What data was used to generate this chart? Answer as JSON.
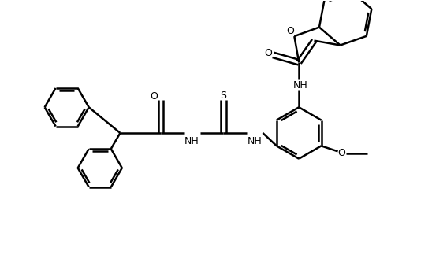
{
  "background_color": "#ffffff",
  "line_color": "#000000",
  "line_width": 1.8,
  "fig_width": 5.48,
  "fig_height": 3.52,
  "dpi": 100,
  "xlim": [
    0,
    11
  ],
  "ylim": [
    0,
    7.5
  ]
}
